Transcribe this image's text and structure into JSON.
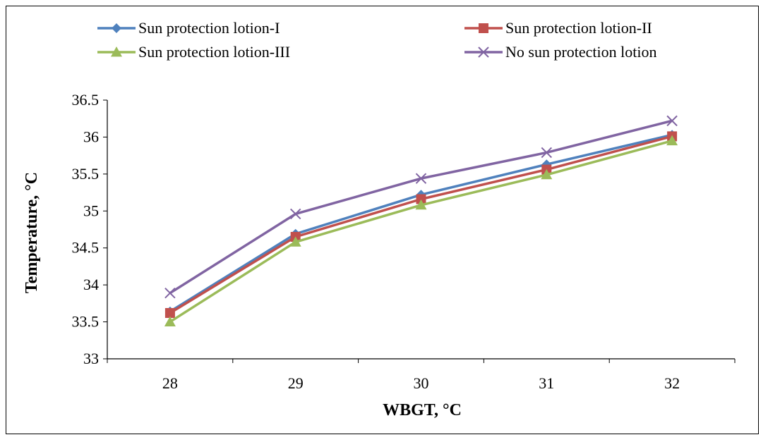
{
  "chart_data": {
    "type": "line",
    "xlabel": "WBGT, °C",
    "ylabel": "Temperature, °C",
    "categories": [
      "28",
      "29",
      "30",
      "31",
      "32"
    ],
    "ylim": [
      33,
      36.5
    ],
    "yticks": [
      "33",
      "33.5",
      "34",
      "34.5",
      "35",
      "35.5",
      "36",
      "36.5"
    ],
    "grid": false,
    "legend_position": "top",
    "series": [
      {
        "name": "Sun protection lotion-I",
        "values": [
          33.64,
          34.69,
          35.22,
          35.63,
          36.03
        ],
        "color": "#4f81bd",
        "marker": "diamond"
      },
      {
        "name": "Sun protection lotion-II",
        "values": [
          33.62,
          34.65,
          35.16,
          35.56,
          36.01
        ],
        "color": "#c0504d",
        "marker": "square"
      },
      {
        "name": "Sun protection lotion-III",
        "values": [
          33.5,
          34.58,
          35.08,
          35.49,
          35.95
        ],
        "color": "#9bbb59",
        "marker": "triangle"
      },
      {
        "name": "No sun protection lotion",
        "values": [
          33.89,
          34.96,
          35.44,
          35.79,
          36.22
        ],
        "color": "#8064a2",
        "marker": "x"
      }
    ]
  }
}
